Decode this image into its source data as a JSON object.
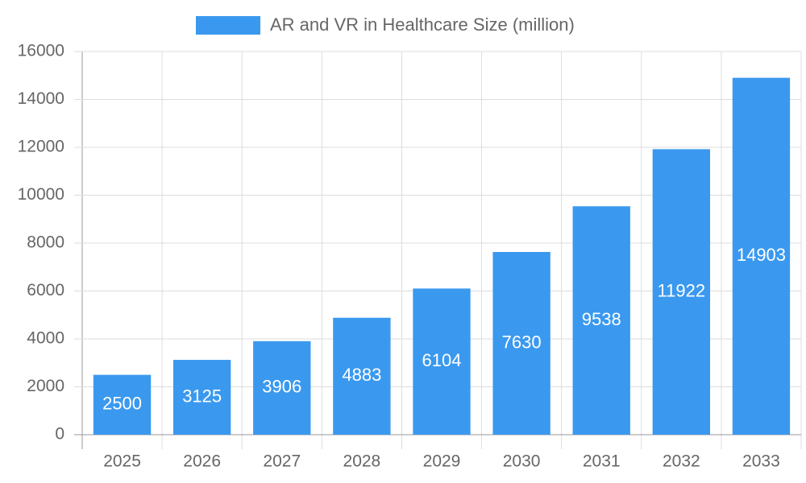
{
  "chart_data": {
    "type": "bar",
    "categories": [
      "2025",
      "2026",
      "2027",
      "2028",
      "2029",
      "2030",
      "2031",
      "2032",
      "2033"
    ],
    "series": [
      {
        "name": "AR and VR in Healthcare Size (million)",
        "color": "#3a99ef",
        "values": [
          2500,
          3125,
          3906,
          4883,
          6104,
          7630,
          9538,
          11922,
          14903
        ]
      }
    ],
    "ylim": [
      0,
      16000
    ],
    "yticks": [
      0,
      2000,
      4000,
      6000,
      8000,
      10000,
      12000,
      14000,
      16000
    ],
    "grid": true,
    "legend": "top",
    "data_labels": true
  }
}
